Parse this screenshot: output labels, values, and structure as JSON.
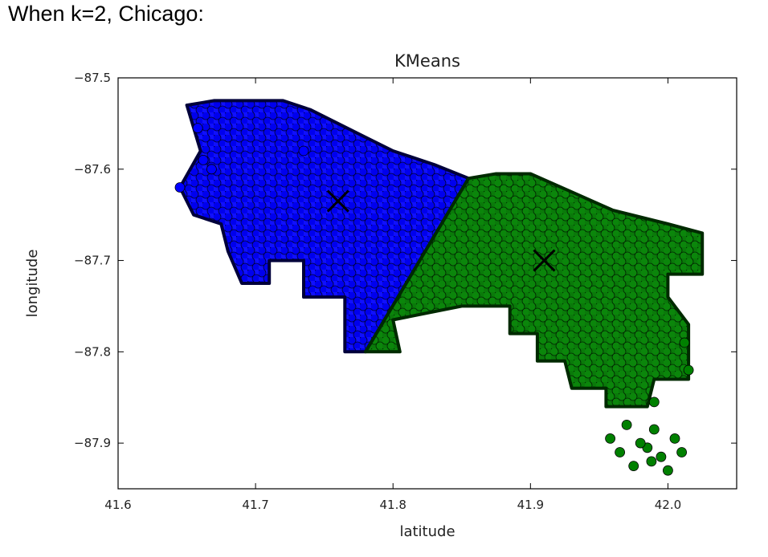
{
  "heading": "When k=2, Chicago:",
  "chart_data": {
    "type": "scatter",
    "title": "KMeans",
    "xlabel": "latitude",
    "ylabel": "longitude",
    "xlim": [
      41.6,
      42.05
    ],
    "ylim": [
      -87.95,
      -87.5
    ],
    "xticks": [
      "41.6",
      "41.7",
      "41.8",
      "41.9",
      "42.0"
    ],
    "xtick_values": [
      41.6,
      41.7,
      41.8,
      41.9,
      42.0
    ],
    "yticks": [
      "−87.5",
      "−87.6",
      "−87.7",
      "−87.8",
      "−87.9"
    ],
    "ytick_values": [
      -87.5,
      -87.6,
      -87.7,
      -87.8,
      -87.9
    ],
    "grid": false,
    "legend": "none",
    "series": [
      {
        "color": "#0000ff",
        "region": [
          [
            41.65,
            -87.53
          ],
          [
            41.67,
            -87.525
          ],
          [
            41.69,
            -87.525
          ],
          [
            41.72,
            -87.525
          ],
          [
            41.74,
            -87.535
          ],
          [
            41.76,
            -87.55
          ],
          [
            41.78,
            -87.565
          ],
          [
            41.8,
            -87.58
          ],
          [
            41.83,
            -87.595
          ],
          [
            41.855,
            -87.61
          ],
          [
            41.78,
            -87.8
          ],
          [
            41.765,
            -87.8
          ],
          [
            41.765,
            -87.74
          ],
          [
            41.735,
            -87.74
          ],
          [
            41.735,
            -87.7
          ],
          [
            41.71,
            -87.7
          ],
          [
            41.71,
            -87.725
          ],
          [
            41.69,
            -87.725
          ],
          [
            41.68,
            -87.69
          ],
          [
            41.675,
            -87.66
          ],
          [
            41.655,
            -87.65
          ],
          [
            41.645,
            -87.62
          ],
          [
            41.66,
            -87.58
          ]
        ],
        "centroid": [
          41.76,
          -87.635
        ]
      },
      {
        "color": "#008000",
        "region": [
          [
            41.855,
            -87.61
          ],
          [
            41.875,
            -87.605
          ],
          [
            41.9,
            -87.605
          ],
          [
            41.93,
            -87.625
          ],
          [
            41.96,
            -87.645
          ],
          [
            42.0,
            -87.66
          ],
          [
            42.025,
            -87.67
          ],
          [
            42.025,
            -87.715
          ],
          [
            42.0,
            -87.715
          ],
          [
            42.0,
            -87.74
          ],
          [
            42.015,
            -87.77
          ],
          [
            42.015,
            -87.83
          ],
          [
            41.99,
            -87.83
          ],
          [
            41.985,
            -87.86
          ],
          [
            41.955,
            -87.86
          ],
          [
            41.955,
            -87.84
          ],
          [
            41.93,
            -87.84
          ],
          [
            41.925,
            -87.81
          ],
          [
            41.905,
            -87.81
          ],
          [
            41.905,
            -87.78
          ],
          [
            41.885,
            -87.78
          ],
          [
            41.885,
            -87.75
          ],
          [
            41.85,
            -87.75
          ],
          [
            41.8,
            -87.765
          ],
          [
            41.805,
            -87.8
          ],
          [
            41.78,
            -87.8
          ]
        ],
        "centroid": [
          41.91,
          -87.7
        ]
      }
    ],
    "outliers": [
      {
        "color": "#0000ff",
        "points": [
          [
            41.645,
            -87.62
          ],
          [
            41.658,
            -87.555
          ],
          [
            41.668,
            -87.6
          ],
          [
            41.662,
            -87.59
          ],
          [
            41.735,
            -87.58
          ]
        ]
      },
      {
        "color": "#008000",
        "points": [
          [
            41.958,
            -87.895
          ],
          [
            41.965,
            -87.91
          ],
          [
            41.975,
            -87.925
          ],
          [
            41.985,
            -87.905
          ],
          [
            41.99,
            -87.885
          ],
          [
            41.995,
            -87.915
          ],
          [
            42.005,
            -87.895
          ],
          [
            42.0,
            -87.93
          ],
          [
            41.97,
            -87.88
          ],
          [
            41.98,
            -87.9
          ],
          [
            41.988,
            -87.92
          ],
          [
            42.01,
            -87.91
          ],
          [
            42.012,
            -87.79
          ],
          [
            42.015,
            -87.82
          ],
          [
            41.99,
            -87.855
          ]
        ]
      }
    ]
  }
}
